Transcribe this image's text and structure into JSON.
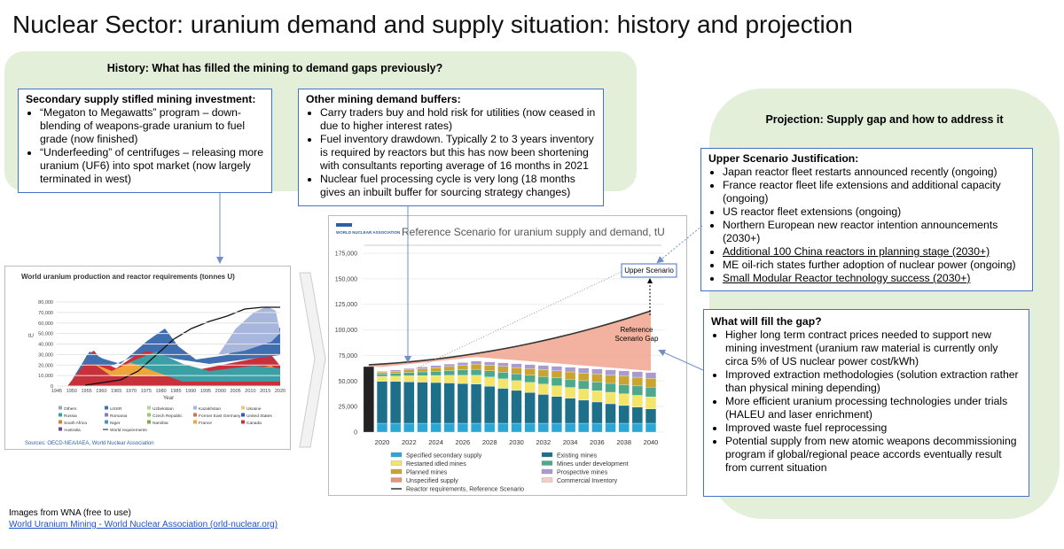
{
  "title": "Nuclear Sector: uranium demand and supply situation: history and projection",
  "history": {
    "heading": "History: What has filled the mining to demand gaps previously?",
    "secondary_box": {
      "heading": "Secondary supply stifled mining investment:",
      "bullets": [
        "“Megaton to Megawatts” program – down-blending of weapons-grade uranium to fuel grade (now finished)",
        "“Underfeeding” of centrifuges – releasing more uranium (UF6) into spot market (now largely terminated in west)"
      ]
    },
    "buffers_box": {
      "heading": "Other mining demand buffers:",
      "bullets": [
        "Carry traders buy and hold risk for utilities (now ceased in due to higher interest rates)",
        "Fuel inventory drawdown. Typically 2 to 3 years inventory is required by reactors but this has now been shortening with consultants reporting average of 16 months in 2021",
        "Nuclear fuel processing cycle is very long (18 months gives an inbuilt buffer for sourcing strategy changes)"
      ]
    }
  },
  "projection": {
    "heading": "Projection: Supply gap and how to address it",
    "upper_box": {
      "heading": "Upper Scenario Justification:",
      "bullets": [
        "Japan reactor fleet restarts announced recently (ongoing)",
        "France reactor fleet life extensions and additional capacity (ongoing)",
        "US reactor fleet extensions (ongoing)",
        "Northern European new reactor intention announcements (2030+)",
        "Additional 100 China reactors in planning stage (2030+)",
        "ME oil-rich states further adoption of nuclear power (ongoing)",
        "Small Modular Reactor technology success (2030+)"
      ]
    },
    "gap_box": {
      "heading": "What will fill the gap?",
      "bullets": [
        "Higher long term contract prices needed to support new mining investment (uranium raw material is currently only circa 5% of US nuclear power cost/kWh)",
        "Improved extraction methodologies (solution extraction rather than physical mining depending)",
        "More efficient uranium processing technologies under trials (HALEU and laser enrichment)",
        "Improved waste fuel reprocessing",
        "Potential supply from new atomic weapons decommissioning program if global/regional peace accords eventually result from current situation"
      ]
    }
  },
  "production_chart": {
    "title": "World uranium production and reactor requirements (tonnes U)",
    "y_label": "tU",
    "yticks": [
      "0",
      "10,000",
      "20,000",
      "30,000",
      "40,000",
      "50,000",
      "60,000",
      "70,000",
      "80,000"
    ],
    "xticks": [
      "1945",
      "1950",
      "1955",
      "1960",
      "1965",
      "1970",
      "1975",
      "1980",
      "1985",
      "1990",
      "1995",
      "2000",
      "2005",
      "2010",
      "2015",
      "2020"
    ],
    "x_label": "Year",
    "legend": [
      {
        "name": "Others",
        "color": "#9aa9b4"
      },
      {
        "name": "USSR",
        "color": "#3f6fb0"
      },
      {
        "name": "Uzbekistan",
        "color": "#b2d39a"
      },
      {
        "name": "Kazakhstan",
        "color": "#a7b6dc"
      },
      {
        "name": "Ukraine",
        "color": "#f2c37a"
      },
      {
        "name": "Russia",
        "color": "#3aa0a5"
      },
      {
        "name": "Romania",
        "color": "#8b78b8"
      },
      {
        "name": "Czech Republic",
        "color": "#9cc46a"
      },
      {
        "name": "Former East Germany",
        "color": "#d8704a"
      },
      {
        "name": "United States",
        "color": "#2d5ea8"
      },
      {
        "name": "South Africa",
        "color": "#e07a3a"
      },
      {
        "name": "Niger",
        "color": "#4a8fc2"
      },
      {
        "name": "Namibia",
        "color": "#7aaa4a"
      },
      {
        "name": "France",
        "color": "#f0a43a"
      },
      {
        "name": "Canada",
        "color": "#c8303a"
      },
      {
        "name": "Australia",
        "color": "#6a4a9a"
      },
      {
        "name": "World requirements",
        "color": "#111111"
      }
    ],
    "source": "Sources: OECD-NEA/IAEA, World Nuclear Association"
  },
  "scenario_chart": {
    "logo": "WORLD NUCLEAR ASSOCIATION",
    "title": "Reference Scenario for uranium supply and demand, tU",
    "yticks": [
      "0",
      "25,000",
      "50,000",
      "75,000",
      "100,000",
      "125,000",
      "150,000",
      "175,000"
    ],
    "xticks": [
      "2020",
      "2022",
      "2024",
      "2026",
      "2028",
      "2030",
      "2032",
      "2034",
      "2036",
      "2038",
      "2040"
    ],
    "legend": [
      {
        "name": "Specified secondary supply",
        "color": "#2aa7d6"
      },
      {
        "name": "Existing mines",
        "color": "#1d6f8a"
      },
      {
        "name": "Restarted idled mines",
        "color": "#f3e46a"
      },
      {
        "name": "Mines under development",
        "color": "#4ea88c"
      },
      {
        "name": "Planned mines",
        "color": "#c9a430"
      },
      {
        "name": "Prospective mines",
        "color": "#a99ad0"
      },
      {
        "name": "Unspecified supply",
        "color": "#e8947a"
      },
      {
        "name": "Commercial Inventory",
        "color": "#f6cdc4"
      },
      {
        "name": "Reactor requirements, Reference Scenario",
        "color": "#333333"
      }
    ],
    "upper_label": "Upper Scenario",
    "gap_label": "Reference Scenario Gap"
  },
  "footer": {
    "note": "Images from WNA (free to use)",
    "link": "World Uranium Mining - World Nuclear Association (orld-nuclear.org)"
  }
}
